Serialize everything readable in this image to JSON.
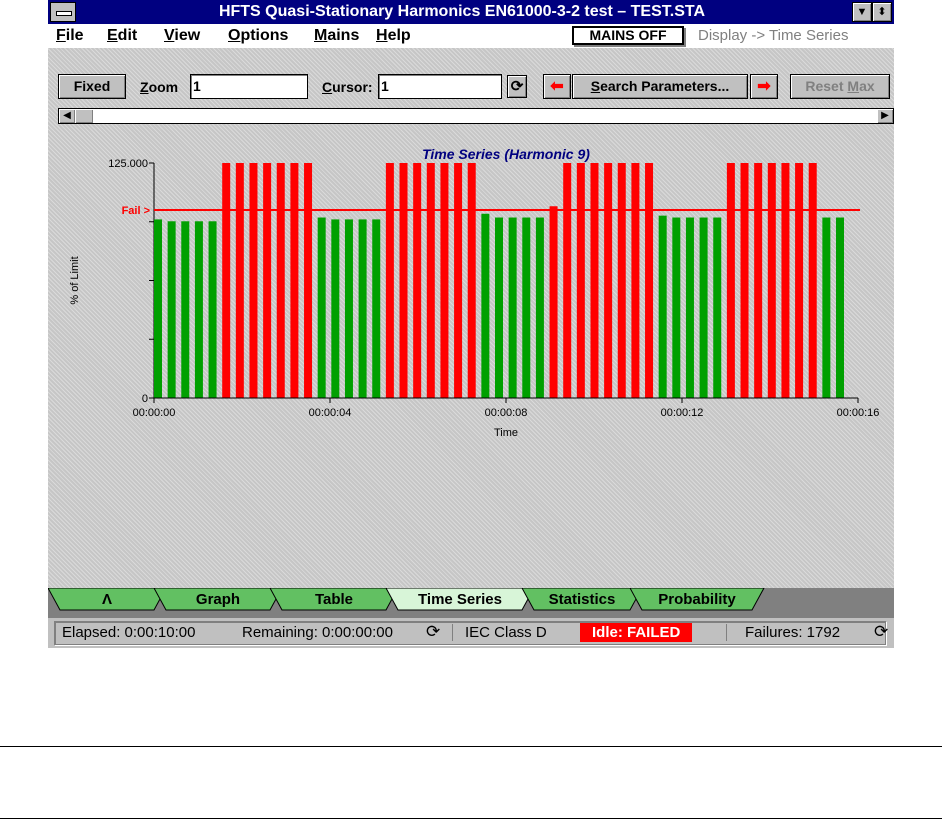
{
  "window": {
    "title": "HFTS Quasi-Stationary Harmonics EN61000-3-2 test – TEST.STA"
  },
  "menu": {
    "items": [
      {
        "u": "F",
        "rest": "ile"
      },
      {
        "u": "E",
        "rest": "dit"
      },
      {
        "u": "V",
        "rest": "iew"
      },
      {
        "u": "O",
        "rest": "ptions"
      },
      {
        "u": "M",
        "rest": "ains"
      },
      {
        "u": "H",
        "rest": "elp"
      }
    ],
    "mains_status": "MAINS OFF",
    "display": "Display -> Time Series"
  },
  "toolbar": {
    "fixed": "Fixed",
    "zoom_label_u": "Z",
    "zoom_label_rest": "oom",
    "zoom_value": "1",
    "cursor_label_u": "C",
    "cursor_label_rest": "ursor:",
    "cursor_value": "1",
    "search_u": "S",
    "search_label_pre": "",
    "search_label_post": "earch Parameters...",
    "reset_pre": "Reset ",
    "reset_u": "M",
    "reset_post": "ax"
  },
  "chart_data": {
    "type": "bar",
    "title": "Time Series (Harmonic 9)",
    "xlabel": "Time",
    "ylabel": "% of Limit",
    "ylim": [
      0,
      125
    ],
    "y_ticks": [
      "125.000",
      "0"
    ],
    "x_ticks": [
      "00:00:00",
      "00:00:04",
      "00:00:08",
      "00:00:12",
      "00:00:16"
    ],
    "x_range": [
      0,
      16
    ],
    "limit_label": "Fail >",
    "limit_value": 100,
    "pass_color": "#00a000",
    "fail_color": "#ff0000",
    "x": [
      0,
      0.31,
      0.62,
      0.93,
      1.24,
      1.55,
      1.86,
      2.17,
      2.48,
      2.79,
      3.1,
      3.41,
      3.72,
      4.03,
      4.34,
      4.65,
      4.96,
      5.27,
      5.58,
      5.89,
      6.2,
      6.51,
      6.82,
      7.13,
      7.44,
      7.75,
      8.06,
      8.37,
      8.68,
      8.99,
      9.3,
      9.61,
      9.92,
      10.23,
      10.54,
      10.85,
      11.16,
      11.47,
      11.78,
      12.09,
      12.4,
      12.71,
      13.02,
      13.33,
      13.64,
      13.95,
      14.26,
      14.57,
      14.88,
      15.19,
      15.5
    ],
    "values": [
      95,
      94,
      94,
      94,
      94,
      125,
      125,
      125,
      125,
      125,
      125,
      125,
      96,
      95,
      95,
      95,
      95,
      125,
      125,
      125,
      125,
      125,
      125,
      125,
      98,
      96,
      96,
      96,
      96,
      102,
      125,
      125,
      125,
      125,
      125,
      125,
      125,
      97,
      96,
      96,
      96,
      96,
      125,
      125,
      125,
      125,
      125,
      125,
      125,
      96,
      96
    ]
  },
  "tabs": [
    {
      "label": "Λ",
      "active": false
    },
    {
      "label": "Graph",
      "active": false
    },
    {
      "label": "Table",
      "active": false
    },
    {
      "label": "Time Series",
      "active": true
    },
    {
      "label": "Statistics",
      "active": false
    },
    {
      "label": "Probability",
      "active": false
    }
  ],
  "status": {
    "elapsed": "Elapsed: 0:00:10:00",
    "remaining": "Remaining: 0:00:00:00",
    "iec_class": "IEC Class D",
    "state": "Idle: FAILED",
    "failures": "Failures: 1792"
  }
}
